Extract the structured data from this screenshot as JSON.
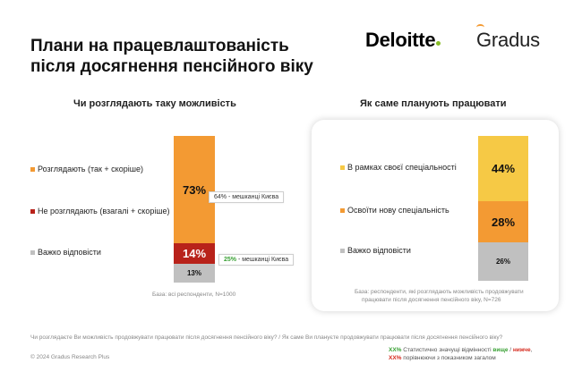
{
  "title_line1": "Плани на працевлаштованість",
  "title_line2": "після досягнення пенсійного віку",
  "logos": {
    "deloitte": "Deloitte",
    "gradus": "Gradus"
  },
  "left_section": {
    "title": "Чи розглядають таку можливість",
    "base_note": "База: всі респонденти, N=1000",
    "callout_kyiv_64": "64% - мешканці Києва",
    "callout_kyiv_25_pct": "25%",
    "callout_kyiv_25_rest": " - мешканці Києва"
  },
  "right_section": {
    "title": "Як саме планують працювати",
    "base_note_line1": "База: респонденти, які розглядають можливість продовжувати",
    "base_note_line2": "працювати після досягнення пенсійного віку, N=726"
  },
  "footer": {
    "question": "Чи розглядаєте Ви можливість продовжувати працювати після досягнення пенсійного віку? / Як саме Ви плануєте продовжувати працювати після досягнення пенсійного віку?",
    "copyright": "© 2024 Gradus Research Plus",
    "sig_xx1": "XX%",
    "sig_text1a": " Статистично значущі відмінності ",
    "sig_higher": "вище",
    "sig_slash": " / ",
    "sig_lower": "нижче",
    "sig_comma": ",",
    "sig_xx2": "XX%",
    "sig_text2": " порівнюючи з показником загалом"
  },
  "chart_data": [
    {
      "type": "bar",
      "stacked": true,
      "title": "Чи розглядають таку можливість",
      "series": [
        {
          "name": "Розглядають (так + скоріше)",
          "value": 73,
          "label": "73%",
          "color": "#f39a33"
        },
        {
          "name": "Не розглядають (взагалі + скоріше)",
          "value": 14,
          "label": "14%",
          "color": "#b8221a"
        },
        {
          "name": "Важко відповісти",
          "value": 13,
          "label": "13%",
          "color": "#c0c0c0"
        }
      ]
    },
    {
      "type": "bar",
      "stacked": true,
      "title": "Як саме планують працювати",
      "series": [
        {
          "name": "В рамках своєї спеціальності",
          "value": 44,
          "label": "44%",
          "color": "#f6c945"
        },
        {
          "name": "Освоїти нову спеціальність",
          "value": 28,
          "label": "28%",
          "color": "#f39a33"
        },
        {
          "name": "Важко відповісти",
          "value": 26,
          "label": "26%",
          "color": "#c0c0c0"
        }
      ]
    }
  ]
}
